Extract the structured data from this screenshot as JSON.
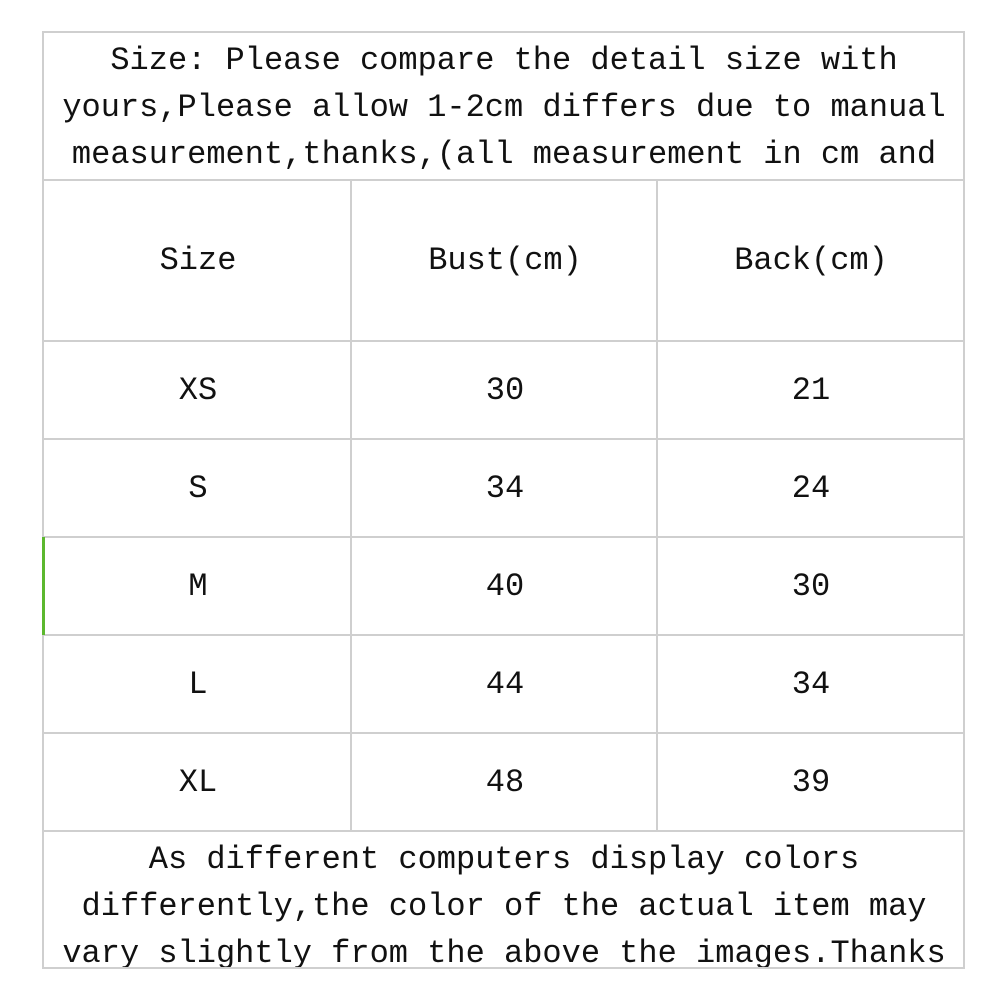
{
  "intro": "Size: Please compare the detail size with\nyours,Please allow 1-2cm differs due to manual\nmeasurement,thanks,(all measurement in cm and",
  "table": {
    "headers": [
      "Size",
      "Bust(cm)",
      "Back(cm)"
    ],
    "rows": [
      [
        "XS",
        "30",
        "21"
      ],
      [
        "S",
        "34",
        "24"
      ],
      [
        "M",
        "40",
        "30"
      ],
      [
        "L",
        "44",
        "34"
      ],
      [
        "XL",
        "48",
        "39"
      ]
    ]
  },
  "footer": "As different computers display colors\ndifferently,the color of the actual item may\nvary slightly from the above the images.Thanks",
  "colors": {
    "grid": "#cfcfcf",
    "highlight": "#5cb82e"
  }
}
